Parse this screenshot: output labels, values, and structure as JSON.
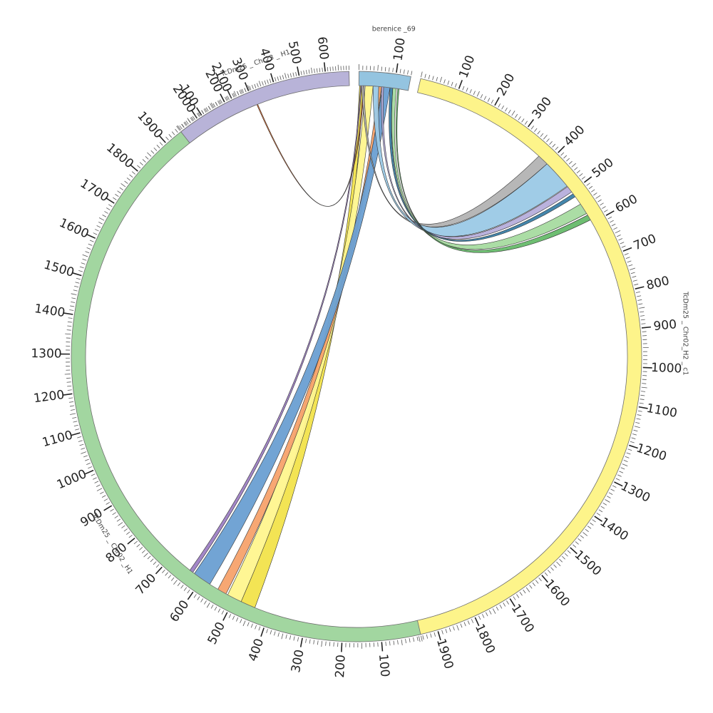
{
  "chart_data": {
    "type": "chord",
    "segments": [
      {
        "id": "berenice",
        "name": "berenice _69",
        "length": 140,
        "color": "#94c4e0",
        "ticks": [
          100
        ]
      },
      {
        "id": "chr02h2",
        "name": "TcDm25 _ Chr02_H2 _ c1",
        "length": 1950,
        "color": "#fdf48a",
        "ticks": [
          100,
          200,
          300,
          400,
          500,
          600,
          700,
          800,
          900,
          1000,
          1100,
          1200,
          1300,
          1400,
          1500,
          1600,
          1700,
          1800,
          1900
        ]
      },
      {
        "id": "chr02h1",
        "name": "TcDm25 _ Chr02 _H1",
        "length": 2150,
        "color": "#a2d6a0",
        "ticks": [
          100,
          200,
          300,
          400,
          500,
          600,
          700,
          800,
          900,
          1000,
          1100,
          1200,
          1300,
          1400,
          1500,
          1600,
          1700,
          1800,
          1900,
          2000,
          2100
        ],
        "reversed": true
      },
      {
        "id": "chr23h1",
        "name": "TcDm25 _ Chr23 _ H1",
        "length": 690,
        "color": "#b8b3d8",
        "ticks": [
          100,
          200,
          300,
          400,
          500,
          600
        ]
      }
    ],
    "links": [
      {
        "from": {
          "seg": "berenice",
          "start": 2,
          "end": 12
        },
        "to": {
          "seg": "chr02h1",
          "start": 440,
          "end": 480
        },
        "color": "#f2e34b"
      },
      {
        "from": {
          "seg": "berenice",
          "start": 18,
          "end": 40
        },
        "to": {
          "seg": "chr02h1",
          "start": 480,
          "end": 520
        },
        "color": "#fff58e"
      },
      {
        "from": {
          "seg": "berenice",
          "start": 56,
          "end": 64
        },
        "to": {
          "seg": "chr02h1",
          "start": 525,
          "end": 550
        },
        "color": "#f7a26c"
      },
      {
        "from": {
          "seg": "berenice",
          "start": 66,
          "end": 88
        },
        "to": {
          "seg": "chr02h1",
          "start": 575,
          "end": 625
        },
        "color": "#6a9fd2"
      },
      {
        "from": {
          "seg": "berenice",
          "start": 5,
          "end": 8
        },
        "to": {
          "seg": "chr02h1",
          "start": 630,
          "end": 640
        },
        "color": "#9d80c4"
      },
      {
        "from": {
          "seg": "berenice",
          "start": 12,
          "end": 15
        },
        "to": {
          "seg": "chr23h1",
          "start": 310,
          "end": 314
        },
        "color": "#d9682b"
      },
      {
        "from": {
          "seg": "berenice",
          "start": 8,
          "end": 14
        },
        "to": {
          "seg": "chr02h2",
          "start": 370,
          "end": 400
        },
        "color": "#b3b3b3"
      },
      {
        "from": {
          "seg": "berenice",
          "start": 40,
          "end": 56
        },
        "to": {
          "seg": "chr02h2",
          "start": 400,
          "end": 480
        },
        "color": "#9bc9e6"
      },
      {
        "from": {
          "seg": "berenice",
          "start": 64,
          "end": 70
        },
        "to": {
          "seg": "chr02h2",
          "start": 482,
          "end": 500
        },
        "color": "#b6aedb"
      },
      {
        "from": {
          "seg": "berenice",
          "start": 96,
          "end": 106
        },
        "to": {
          "seg": "chr02h2",
          "start": 540,
          "end": 570
        },
        "color": "#a6dba0"
      },
      {
        "from": {
          "seg": "berenice",
          "start": 110,
          "end": 114
        },
        "to": {
          "seg": "chr02h2",
          "start": 575,
          "end": 590
        },
        "color": "#66bb6a"
      },
      {
        "from": {
          "seg": "berenice",
          "start": 88,
          "end": 96
        },
        "to": {
          "seg": "chr02h2",
          "start": 506,
          "end": 516
        },
        "color": "#3a7fa8"
      }
    ]
  }
}
